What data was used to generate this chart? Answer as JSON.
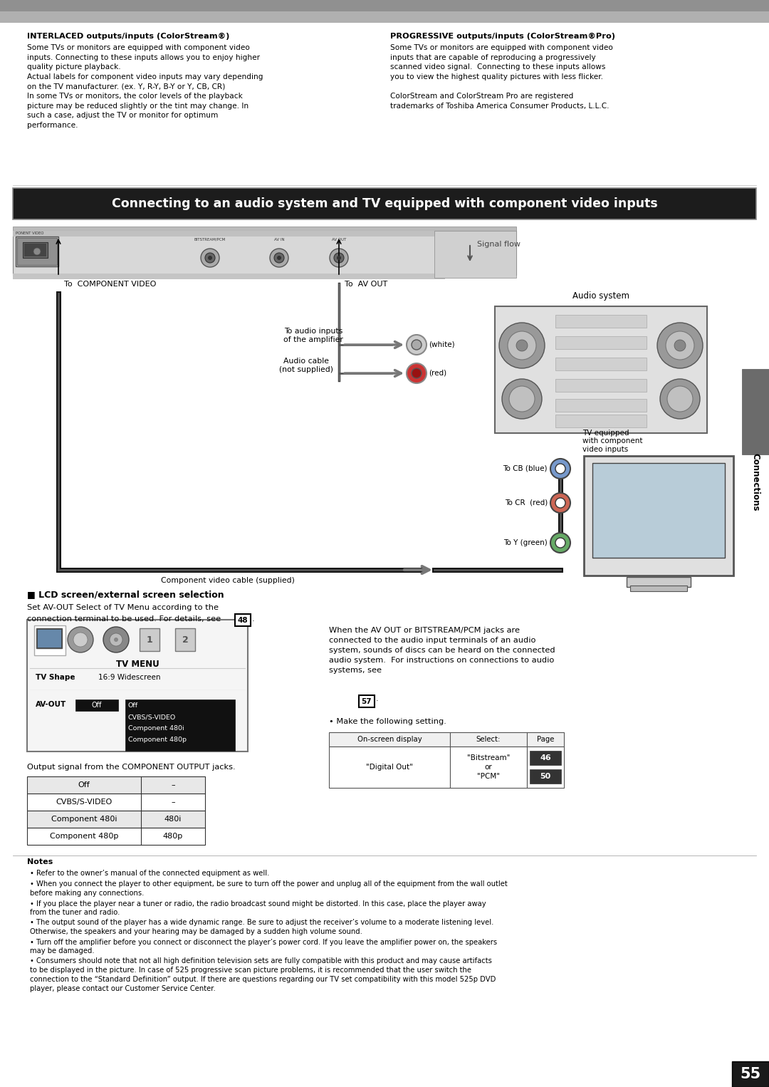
{
  "page_bg": "#ffffff",
  "top_bar_color": "#999999",
  "title_box_bg": "#1a1a1a",
  "title_box_text": "Connecting to an audio system and TV equipped with component video inputs",
  "title_box_text_color": "#ffffff",
  "connections_tab_bg": "#6b6b6b",
  "connections_tab_text": "Connections",
  "page_number": "55",
  "left_col_header": "INTERLACED outputs/inputs (ColorStream®)",
  "left_col_body": "Some TVs or monitors are equipped with component video\ninputs. Connecting to these inputs allows you to enjoy higher\nquality picture playback.\nActual labels for component video inputs may vary depending\non the TV manufacturer. (ex. Y, R-Y, B-Y or Y, CB, CR)\nIn some TVs or monitors, the color levels of the playback\npicture may be reduced slightly or the tint may change. In\nsuch a case, adjust the TV or monitor for optimum\nperformance.",
  "right_col_header": "PROGRESSIVE outputs/inputs (ColorStream®Pro)",
  "right_col_body": "Some TVs or monitors are equipped with component video\ninputs that are capable of reproducing a progressively\nscanned video signal.  Connecting to these inputs allows\nyou to view the highest quality pictures with less flicker.\n\nColorStream and ColorStream Pro are registered\ntrademarks of Toshiba America Consumer Products, L.L.C.",
  "lcd_section_header": "■ LCD screen/external screen selection",
  "lcd_line1": "Set AV-OUT Select of TV Menu according to the",
  "lcd_line2": "connection terminal to be used. For details, see",
  "lcd_page_ref": "48",
  "signal_flow_label": "Signal flow",
  "component_video_label": "To  COMPONENT VIDEO",
  "av_out_label": "To  AV OUT",
  "audio_inputs_label": "To audio inputs\nof the amplifier",
  "audio_cable_label": "Audio cable\n(not supplied)",
  "white_label": "(white)",
  "red_label": "(red)",
  "audio_system_label": "Audio system",
  "tv_label": "TV equipped\nwith component\nvideo inputs",
  "cb_label": "To CB (blue)",
  "cr_label": "To CR  (red)",
  "y_label": "To Y (green)",
  "component_cable_label": "Component video cable (supplied)",
  "tv_menu_title": "TV MENU",
  "tv_shape_label": "TV Shape",
  "tv_shape_value": "16:9 Widescreen",
  "av_out_menu_label": "AV-OUT",
  "av_out_menu_value": "Off",
  "menu_options": [
    "Off",
    "CVBS/S-VIDEO",
    "Component 480i",
    "Component 480p"
  ],
  "output_table_header": "Output signal from the COMPONENT OUTPUT jacks.",
  "output_table_rows": [
    [
      "Off",
      "–"
    ],
    [
      "CVBS/S-VIDEO",
      "–"
    ],
    [
      "Component 480i",
      "480i"
    ],
    [
      "Component 480p",
      "480p"
    ]
  ],
  "av_out_bitstream_text": "When the AV OUT or BITSTREAM/PCM jacks are\nconnected to the audio input terminals of an audio\nsystem, sounds of discs can be heard on the connected\naudio system.  For instructions on connections to audio\nsystems, see",
  "av_out_page_ref": "57",
  "make_setting_text": "• Make the following setting.",
  "on_screen_table_headers": [
    "On-screen display",
    "Select:",
    "Page"
  ],
  "on_screen_row_col0": "\"Digital Out\"",
  "on_screen_row_col1": "\"Bitstream\"\nor\n\"PCM\"",
  "on_screen_pages": [
    "46",
    "50"
  ],
  "notes_header": "Notes",
  "notes_items": [
    "Refer to the owner’s manual of the connected equipment as well.",
    "When you connect the player to other equipment, be sure to turn off the power and unplug all of the equipment from the wall outlet before making any connections.",
    "If you place the player near a tuner or radio, the radio broadcast sound might be distorted. In this case, place the player away from the tuner and radio.",
    "The output sound of the player has a wide dynamic range. Be sure to adjust the receiver’s volume to a moderate listening level. Otherwise, the speakers and your hearing may be damaged by a sudden high volume sound.",
    "Turn off the amplifier before you connect or disconnect the player’s power cord. If you leave the amplifier power on, the speakers may be damaged.",
    "Consumers should note that not all high definition television sets are fully compatible with this product and may cause artifacts to be displayed in the picture. In case of 525 progressive scan picture problems, it is recommended that the user switch the connection to the “Standard Definition” output. If there are questions regarding our TV set compatibility with this model 525p DVD player, please contact our Customer Service Center."
  ]
}
